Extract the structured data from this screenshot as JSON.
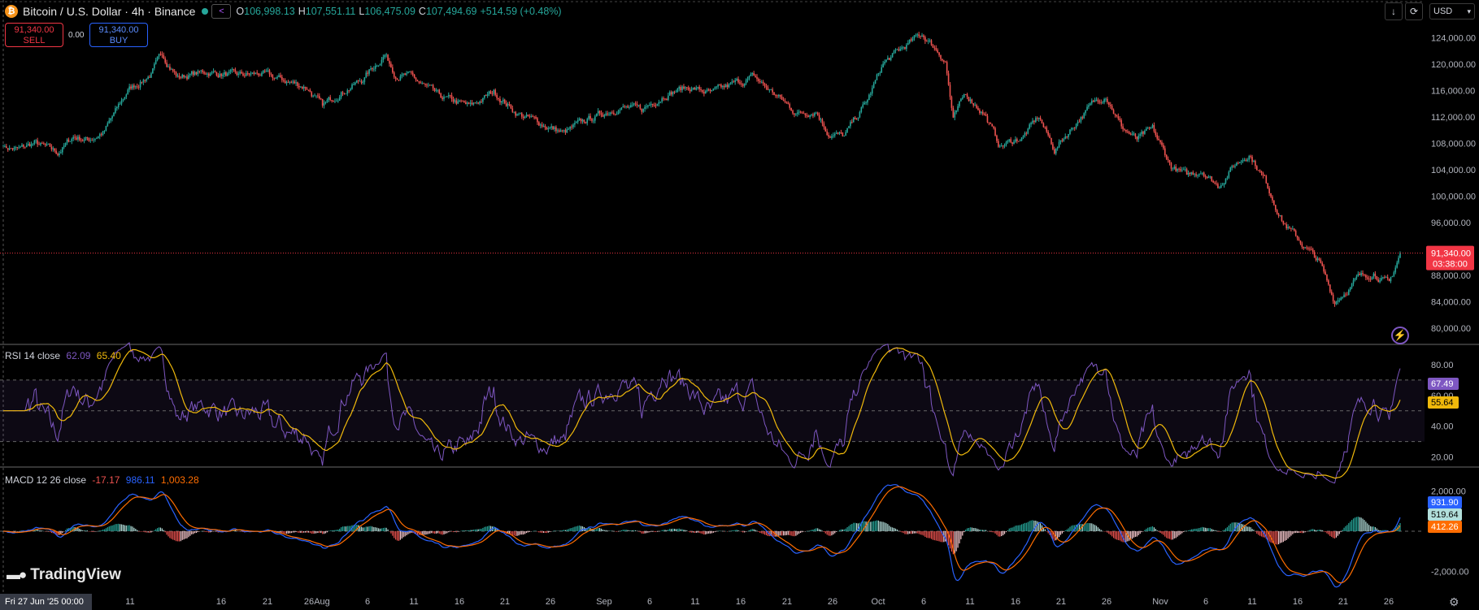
{
  "header": {
    "symbol": "Bitcoin / U.S. Dollar · 4h · Binance",
    "coin_glyph": "₿",
    "o_label": "O",
    "o_value": "106,998.13",
    "h_label": "H",
    "h_value": "107,551.11",
    "l_label": "L",
    "l_value": "106,475.09",
    "c_label": "C",
    "c_value": "107,494.69",
    "change": "+514.59 (+0.48%)"
  },
  "trade": {
    "sell_price": "91,340.00",
    "sell_label": "SELL",
    "spread": "0.00",
    "buy_price": "91,340.00",
    "buy_label": "BUY"
  },
  "toolbar": {
    "currency": "USD",
    "download_icon": "download-icon",
    "refresh_icon": "refresh-icon"
  },
  "brand": "TradingView",
  "date_label": "Fri 27 Jun '25   00:00",
  "colors": {
    "up": "#26a69a",
    "down": "#ef5350",
    "rsi": "#7e57c2",
    "rsi_ma": "#f0b90b",
    "macd": "#2962ff",
    "signal": "#ff6d00",
    "last_price": "#f23645"
  },
  "chart_data": [
    {
      "type": "candlestick",
      "title": "Bitcoin / U.S. Dollar · 4h · Binance",
      "ylim": [
        78000,
        126000
      ],
      "y_ticks": [
        "80,000.00",
        "84,000.00",
        "88,000.00",
        "92,000.00",
        "96,000.00",
        "100,000.00",
        "104,000.00",
        "108,000.00",
        "112,000.00",
        "116,000.00",
        "120,000.00",
        "124,000.00"
      ],
      "last_price": {
        "value": "91,340.00",
        "countdown": "03:38:00"
      },
      "x_ticks": [
        "11",
        "16",
        "21",
        "26",
        "Aug",
        "6",
        "11",
        "16",
        "21",
        "26",
        "Sep",
        "6",
        "11",
        "16",
        "21",
        "26",
        "Oct",
        "6",
        "11",
        "16",
        "21",
        "26",
        "Nov",
        "6",
        "11",
        "16",
        "21",
        "26"
      ],
      "key_points_close": [
        [
          0,
          107500
        ],
        [
          10,
          107000
        ],
        [
          20,
          108000
        ],
        [
          35,
          106500
        ],
        [
          45,
          109000
        ],
        [
          55,
          108500
        ],
        [
          65,
          109800
        ],
        [
          80,
          116000
        ],
        [
          95,
          118500
        ],
        [
          102,
          121500
        ],
        [
          112,
          118000
        ],
        [
          130,
          118800
        ],
        [
          150,
          118200
        ],
        [
          165,
          118500
        ],
        [
          180,
          117500
        ],
        [
          195,
          116500
        ],
        [
          205,
          113500
        ],
        [
          215,
          115500
        ],
        [
          230,
          117500
        ],
        [
          245,
          121500
        ],
        [
          252,
          118500
        ],
        [
          262,
          118000
        ],
        [
          280,
          115000
        ],
        [
          300,
          113500
        ],
        [
          315,
          115800
        ],
        [
          330,
          112500
        ],
        [
          345,
          111000
        ],
        [
          360,
          109500
        ],
        [
          375,
          111500
        ],
        [
          395,
          113500
        ],
        [
          410,
          113000
        ],
        [
          425,
          115500
        ],
        [
          440,
          116500
        ],
        [
          455,
          115500
        ],
        [
          470,
          117000
        ],
        [
          482,
          118000
        ],
        [
          495,
          115500
        ],
        [
          510,
          112500
        ],
        [
          522,
          113000
        ],
        [
          530,
          109500
        ],
        [
          540,
          109000
        ],
        [
          555,
          114500
        ],
        [
          565,
          120000
        ],
        [
          578,
          122500
        ],
        [
          590,
          124500
        ],
        [
          600,
          122000
        ],
        [
          605,
          120500
        ],
        [
          610,
          111500
        ],
        [
          618,
          115500
        ],
        [
          630,
          112500
        ],
        [
          640,
          107500
        ],
        [
          655,
          109000
        ],
        [
          665,
          112000
        ],
        [
          675,
          107000
        ],
        [
          690,
          111500
        ],
        [
          700,
          114000
        ],
        [
          708,
          115500
        ],
        [
          718,
          110500
        ],
        [
          728,
          108500
        ],
        [
          738,
          110000
        ],
        [
          750,
          104500
        ],
        [
          760,
          103000
        ],
        [
          770,
          104000
        ],
        [
          780,
          101500
        ],
        [
          790,
          104500
        ],
        [
          800,
          106500
        ],
        [
          810,
          102500
        ],
        [
          822,
          96000
        ],
        [
          835,
          92500
        ],
        [
          845,
          90000
        ],
        [
          855,
          84000
        ],
        [
          870,
          87500
        ],
        [
          880,
          88500
        ],
        [
          890,
          86500
        ],
        [
          897,
          91340
        ]
      ]
    },
    {
      "type": "line",
      "title": "RSI 14 close",
      "values_label": [
        "62.09",
        "65.40"
      ],
      "ylim": [
        15,
        90
      ],
      "y_ticks": [
        "20.00",
        "40.00",
        "60.00",
        "80.00"
      ],
      "band": [
        30,
        70
      ],
      "rsi_last": "67.49",
      "ma_last": "55.64"
    },
    {
      "type": "bar",
      "title": "MACD 12 26 close",
      "values_label": [
        "-17.17",
        "986.11",
        "1,003.28"
      ],
      "ylim": [
        -3000,
        3000
      ],
      "y_ticks": [
        "2,000.00",
        "-2,000.00"
      ],
      "macd_last": "931.90",
      "hist_last": "519.64",
      "signal_last": "412.26"
    }
  ]
}
